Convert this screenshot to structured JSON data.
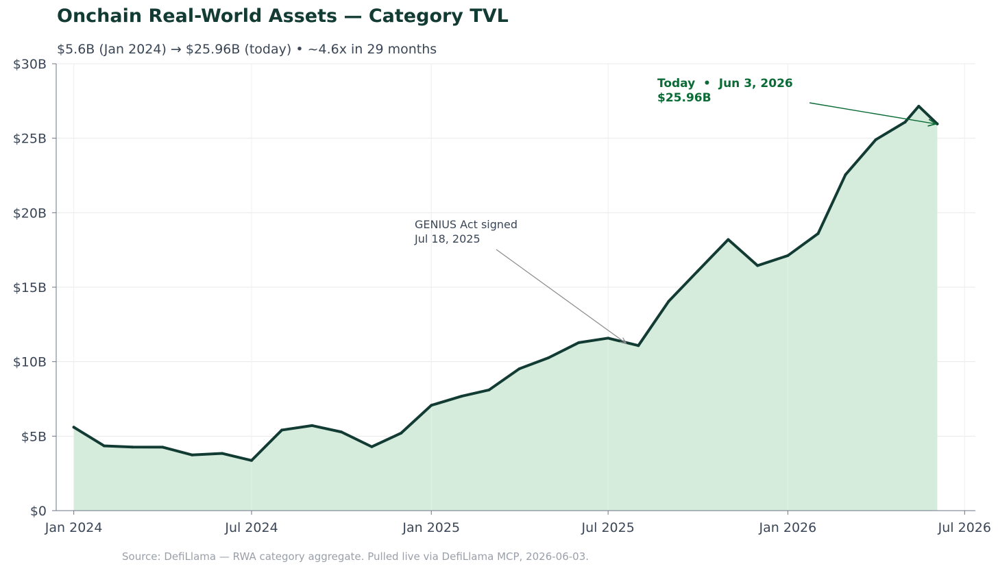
{
  "title": "Onchain Real-World Assets — Category TVL",
  "subtitle": "$5.6B (Jan 2024)  →  $25.96B (today)  •  ~4.6x in 29 months",
  "footer": "Source: DefiLlama — RWA category aggregate. Pulled live via DefiLlama MCP, 2026-06-03.",
  "colors": {
    "line": "#123c33",
    "fill": "#d5ebdc",
    "grid": "#e8e8e8",
    "axis": "#6b7486",
    "today": "#0b6b36",
    "arrow": "#8a8a8a"
  },
  "chart_data": {
    "type": "area",
    "ylim": [
      0,
      30
    ],
    "yunit": "B USD",
    "yticks": [
      {
        "v": 0,
        "label": "$0"
      },
      {
        "v": 5,
        "label": "$5B"
      },
      {
        "v": 10,
        "label": "$10B"
      },
      {
        "v": 15,
        "label": "$15B"
      },
      {
        "v": 20,
        "label": "$20B"
      },
      {
        "v": 25,
        "label": "$25B"
      },
      {
        "v": 30,
        "label": "$30B"
      }
    ],
    "xlim": [
      "2023-12-14",
      "2026-07-12"
    ],
    "xticks": [
      {
        "date": "2024-01-01",
        "label": "Jan 2024"
      },
      {
        "date": "2024-07-01",
        "label": "Jul 2024"
      },
      {
        "date": "2025-01-01",
        "label": "Jan 2025"
      },
      {
        "date": "2025-07-01",
        "label": "Jul 2025"
      },
      {
        "date": "2026-01-01",
        "label": "Jan 2026"
      },
      {
        "date": "2026-07-01",
        "label": "Jul 2026"
      }
    ],
    "grid": true,
    "series": [
      {
        "points": [
          {
            "x": "2024-01-01",
            "y": 5.6
          },
          {
            "x": "2024-02-01",
            "y": 4.35
          },
          {
            "x": "2024-03-01",
            "y": 4.27
          },
          {
            "x": "2024-04-01",
            "y": 4.26
          },
          {
            "x": "2024-05-01",
            "y": 3.74
          },
          {
            "x": "2024-06-01",
            "y": 3.84
          },
          {
            "x": "2024-07-01",
            "y": 3.37
          },
          {
            "x": "2024-08-01",
            "y": 5.41
          },
          {
            "x": "2024-09-01",
            "y": 5.71
          },
          {
            "x": "2024-10-01",
            "y": 5.28
          },
          {
            "x": "2024-11-01",
            "y": 4.29
          },
          {
            "x": "2024-12-01",
            "y": 5.2
          },
          {
            "x": "2025-01-01",
            "y": 7.07
          },
          {
            "x": "2025-02-01",
            "y": 7.68
          },
          {
            "x": "2025-03-01",
            "y": 8.1
          },
          {
            "x": "2025-04-01",
            "y": 9.52
          },
          {
            "x": "2025-05-01",
            "y": 10.26
          },
          {
            "x": "2025-06-01",
            "y": 11.28
          },
          {
            "x": "2025-07-01",
            "y": 11.58
          },
          {
            "x": "2025-08-01",
            "y": 11.08
          },
          {
            "x": "2025-09-01",
            "y": 14.05
          },
          {
            "x": "2025-10-01",
            "y": 16.1
          },
          {
            "x": "2025-11-01",
            "y": 18.2
          },
          {
            "x": "2025-12-01",
            "y": 16.45
          },
          {
            "x": "2026-01-01",
            "y": 17.12
          },
          {
            "x": "2026-02-01",
            "y": 18.6
          },
          {
            "x": "2026-03-01",
            "y": 22.55
          },
          {
            "x": "2026-04-01",
            "y": 24.9
          },
          {
            "x": "2026-05-01",
            "y": 26.08
          },
          {
            "x": "2026-05-15",
            "y": 27.15
          },
          {
            "x": "2026-06-03",
            "y": 25.96
          }
        ]
      }
    ],
    "annotations": [
      {
        "id": "genius",
        "lines": [
          "GENIUS Act signed",
          "Jul 18, 2025"
        ],
        "target": {
          "x": "2025-07-18",
          "y": 11.6
        }
      },
      {
        "id": "today",
        "lines": [
          "Today  •  Jun 3, 2026",
          "$25.96B"
        ],
        "target": {
          "x": "2026-06-03",
          "y": 25.96
        }
      }
    ]
  }
}
